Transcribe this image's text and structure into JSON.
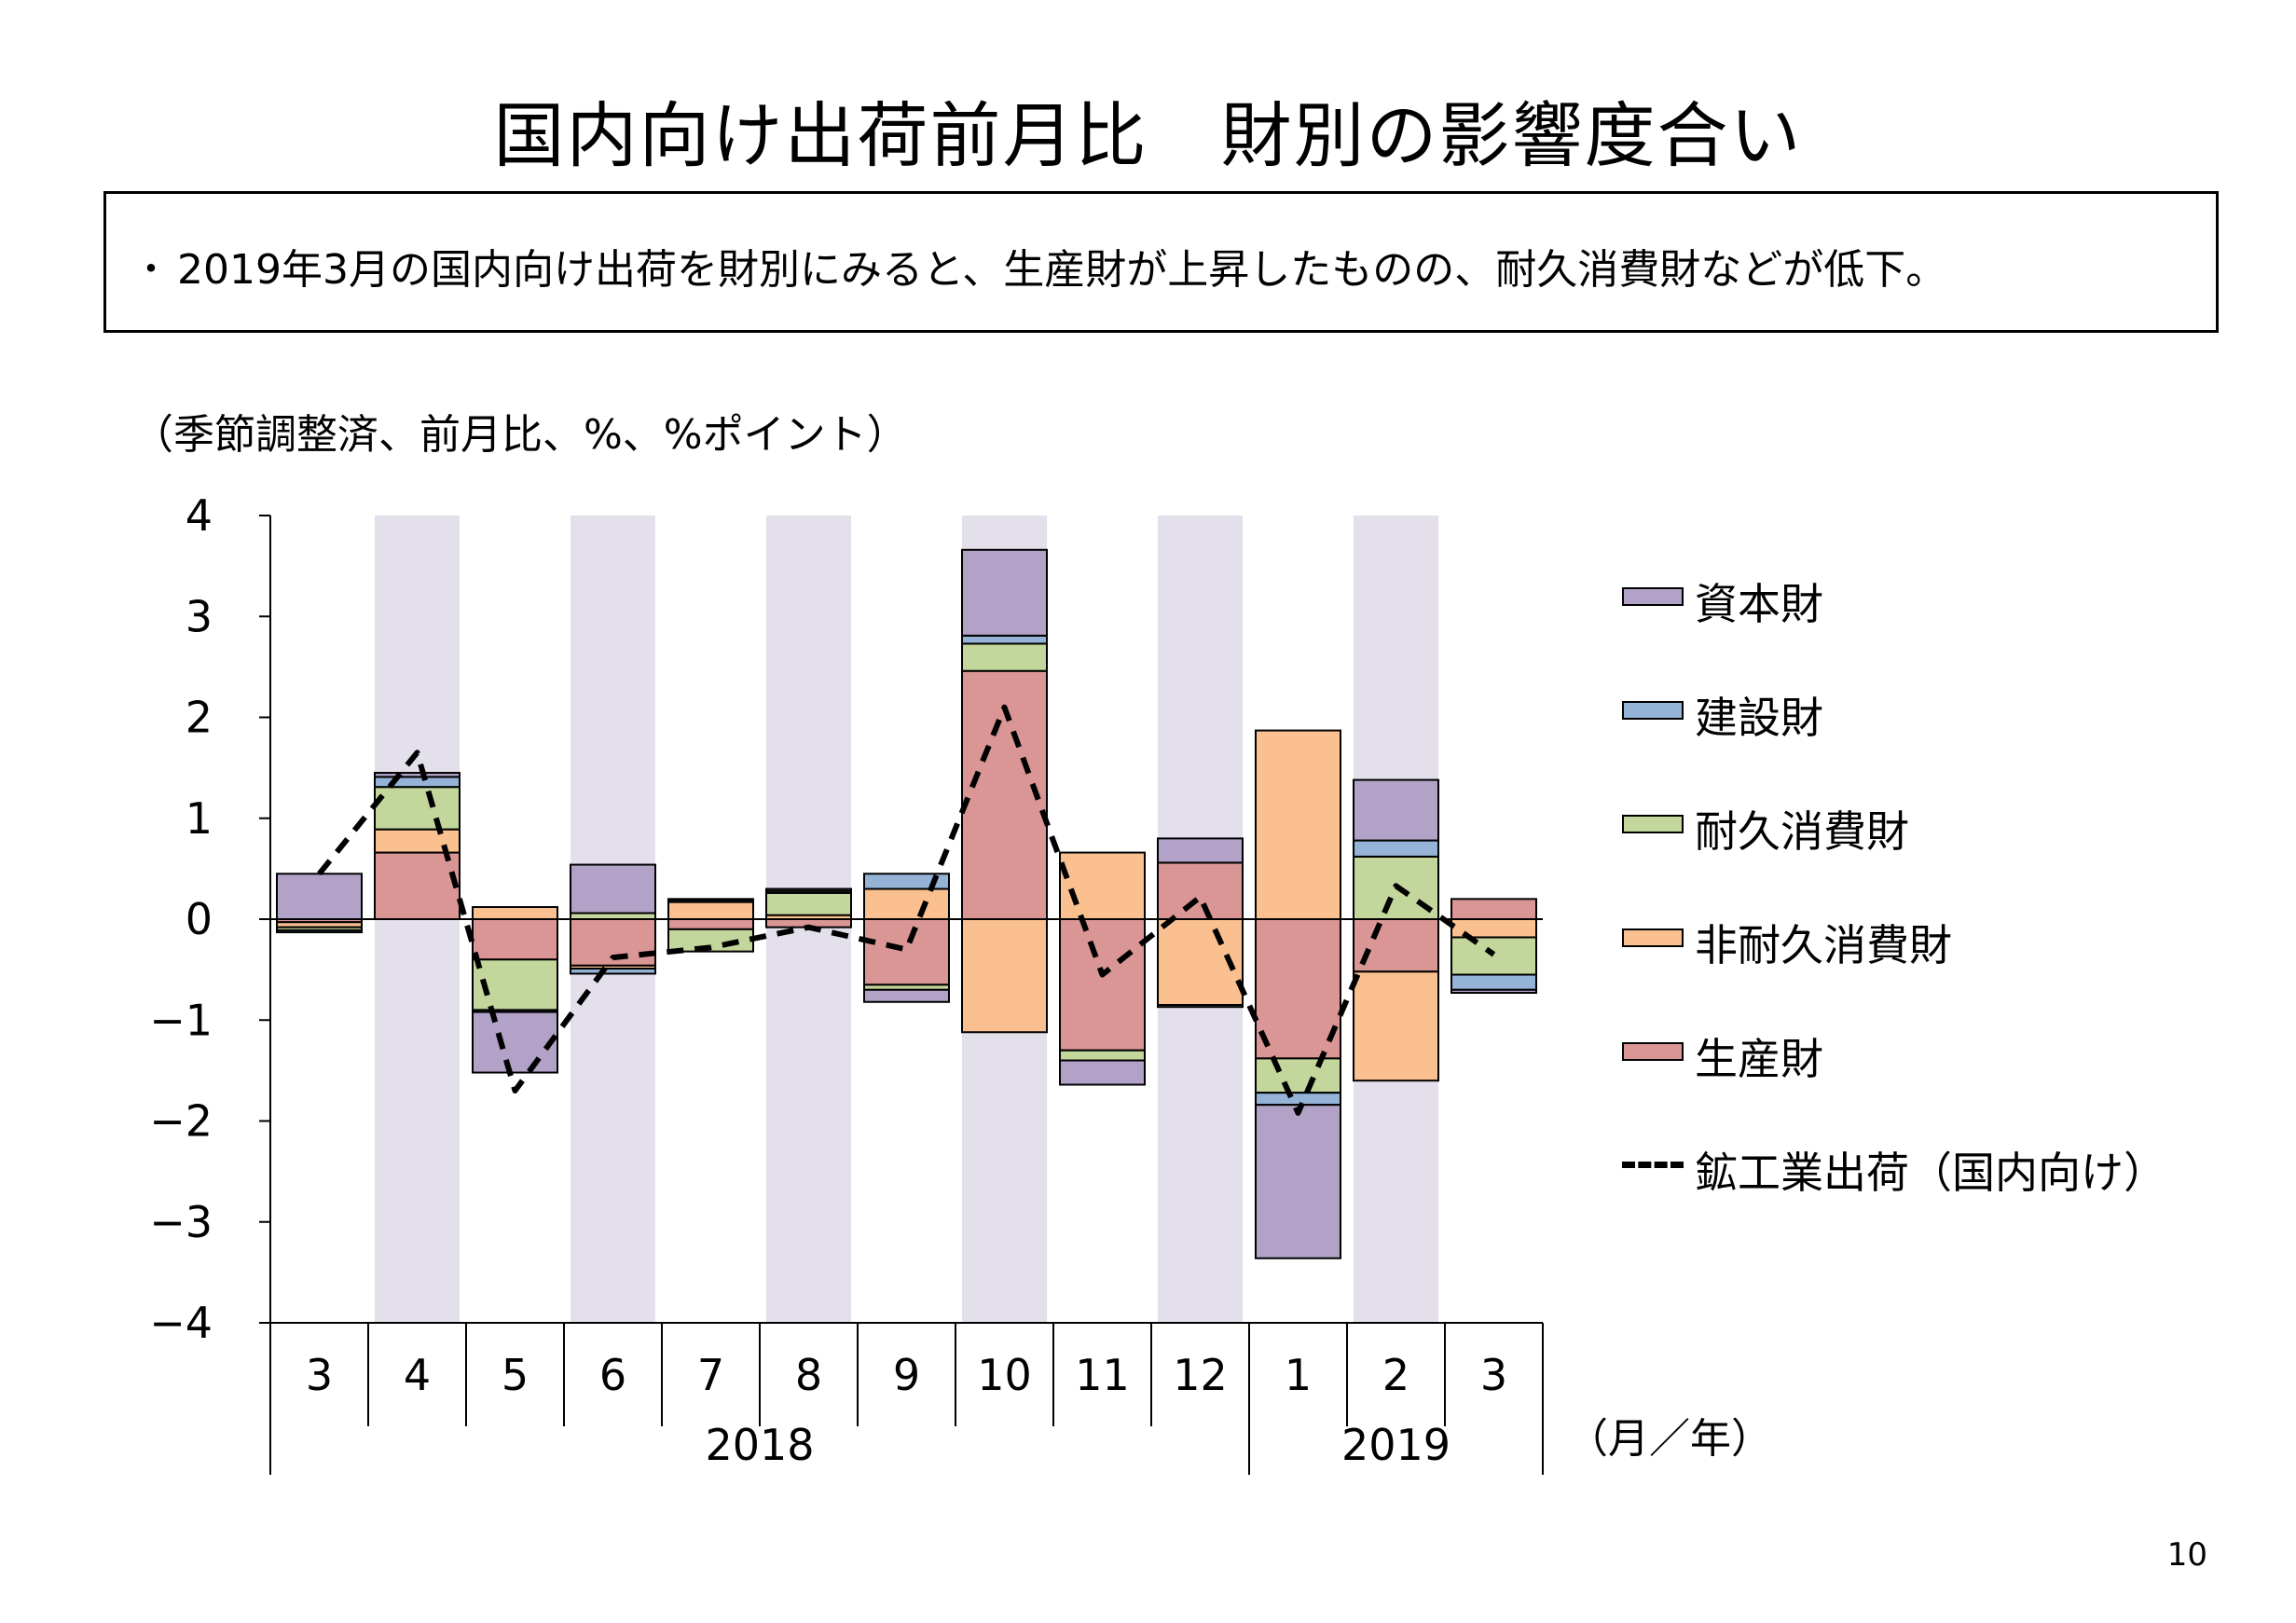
{
  "title": "国内向け出荷前月比　財別の影響度合い",
  "summary": {
    "bullet": "・",
    "text": "2019年3月の国内向け出荷を財別にみると、生産財が上昇したものの、耐久消費財などが低下。"
  },
  "units_note": "（季節調整済、前月比、%、%ポイント）",
  "page_number": "10",
  "chart_data": {
    "type": "bar",
    "stacked": true,
    "ylim": [
      -4,
      4
    ],
    "yticks": [
      4,
      3,
      2,
      1,
      0,
      -1,
      -2,
      -3,
      -4
    ],
    "ytick_labels": [
      "4",
      "3",
      "2",
      "1",
      "0",
      "−1",
      "−2",
      "−3",
      "−4"
    ],
    "categories": [
      "3",
      "4",
      "5",
      "6",
      "7",
      "8",
      "9",
      "10",
      "11",
      "12",
      "1",
      "2",
      "3"
    ],
    "year_groups": [
      {
        "label": "2018",
        "start_index": 0,
        "end_index": 9
      },
      {
        "label": "2019",
        "start_index": 10,
        "end_index": 12
      }
    ],
    "x_unit_label": "（月／年）",
    "shaded_category_indices": [
      1,
      3,
      5,
      7,
      9,
      11
    ],
    "shade_color": "#e3dfeb",
    "series": [
      {
        "name": "生産財",
        "color": "#da9695",
        "values": [
          -0.03,
          0.66,
          -0.4,
          -0.46,
          -0.1,
          -0.08,
          -0.65,
          2.46,
          -1.3,
          0.56,
          -1.38,
          -0.52,
          0.2
        ]
      },
      {
        "name": "非耐久消費財",
        "color": "#fac090",
        "values": [
          -0.05,
          0.23,
          0.12,
          -0.03,
          0.17,
          0.04,
          0.3,
          -1.12,
          0.66,
          -0.85,
          1.87,
          -1.08,
          -0.18
        ]
      },
      {
        "name": "耐久消費財",
        "color": "#c3d69b",
        "values": [
          -0.03,
          0.42,
          -0.5,
          0.06,
          -0.22,
          0.22,
          -0.05,
          0.27,
          -0.1,
          -0.02,
          -0.34,
          0.62,
          -0.37
        ]
      },
      {
        "name": "建設財",
        "color": "#95b3d7",
        "values": [
          -0.02,
          0.1,
          -0.02,
          -0.05,
          0.02,
          0.02,
          0.15,
          0.08,
          0.0,
          0.0,
          -0.12,
          0.16,
          -0.15
        ]
      },
      {
        "name": "資本財",
        "color": "#b2a2c7",
        "values": [
          0.45,
          0.04,
          -0.6,
          0.48,
          0.01,
          0.02,
          -0.12,
          0.85,
          -0.24,
          0.24,
          -1.52,
          0.6,
          -0.03
        ]
      }
    ],
    "line": {
      "name": "鉱工業出荷（国内向け）",
      "style": "dashed",
      "color": "#000000",
      "values": [
        0.45,
        1.65,
        -1.7,
        -0.38,
        -0.28,
        -0.08,
        -0.3,
        2.1,
        -0.55,
        0.22,
        -1.92,
        0.33,
        -0.35
      ]
    },
    "legend_order": [
      "資本財",
      "建設財",
      "耐久消費財",
      "非耐久消費財",
      "生産財",
      "鉱工業出荷（国内向け）"
    ],
    "legend_position": "right"
  }
}
